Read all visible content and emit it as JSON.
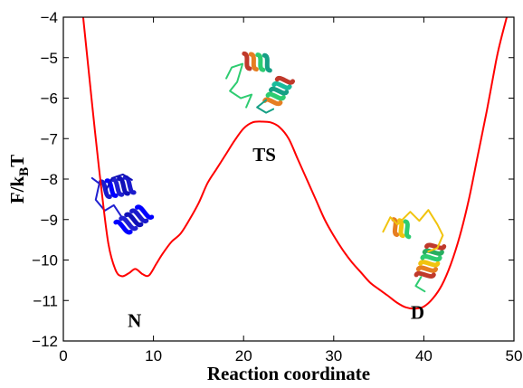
{
  "chart_data": {
    "type": "line",
    "title": "",
    "xlabel": "Reaction coordinate",
    "ylabel_main": "F/k",
    "ylabel_sub": "B",
    "ylabel_tail": "T",
    "xlim": [
      0,
      50
    ],
    "ylim": [
      -12,
      -4
    ],
    "xticks": [
      0,
      10,
      20,
      30,
      40,
      50
    ],
    "xtick_labels": [
      "0",
      "10",
      "20",
      "30",
      "40",
      "50"
    ],
    "yticks": [
      -12,
      -11,
      -10,
      -9,
      -8,
      -7,
      -6,
      -5,
      -4
    ],
    "ytick_labels": [
      "−12",
      "−11",
      "−10",
      "−9",
      "−8",
      "−7",
      "−6",
      "−5",
      "−4"
    ],
    "grid": false,
    "series": [
      {
        "color": "#ff0000",
        "x": [
          2.2,
          2.8,
          3.5,
          4.2,
          5.0,
          5.8,
          6.5,
          7.3,
          8.0,
          8.8,
          9.5,
          10.3,
          11.0,
          12.0,
          13.0,
          14.0,
          15.0,
          16.0,
          17.0,
          18.0,
          19.0,
          20.0,
          21.0,
          22.0,
          23.0,
          24.0,
          25.0,
          26.0,
          27.0,
          28.0,
          29.0,
          30.0,
          31.0,
          32.0,
          33.0,
          34.0,
          35.0,
          36.0,
          37.0,
          38.0,
          39.0,
          40.0,
          41.0,
          42.0,
          43.0,
          44.0,
          45.0,
          46.0,
          47.0,
          48.0,
          48.5,
          49.2
        ],
        "y": [
          -4.0,
          -5.3,
          -6.8,
          -8.2,
          -9.6,
          -10.25,
          -10.4,
          -10.32,
          -10.22,
          -10.35,
          -10.38,
          -10.1,
          -9.85,
          -9.55,
          -9.35,
          -9.0,
          -8.6,
          -8.1,
          -7.75,
          -7.4,
          -7.05,
          -6.75,
          -6.6,
          -6.58,
          -6.6,
          -6.72,
          -7.0,
          -7.5,
          -8.0,
          -8.5,
          -9.0,
          -9.4,
          -9.75,
          -10.05,
          -10.3,
          -10.55,
          -10.72,
          -10.88,
          -11.05,
          -11.17,
          -11.2,
          -11.15,
          -10.95,
          -10.62,
          -10.1,
          -9.4,
          -8.5,
          -7.4,
          -6.3,
          -5.1,
          -4.6,
          -4.0
        ]
      }
    ],
    "annotations": [
      {
        "text": "N",
        "x": 7.9,
        "y": -11.5
      },
      {
        "text": "TS",
        "x": 22.3,
        "y": -7.4
      },
      {
        "text": "D",
        "x": 39.3,
        "y": -11.3
      }
    ],
    "structures": [
      {
        "name": "native-protein-structure",
        "x": 6.0,
        "y": -8.2,
        "palette": [
          "#1a1acc",
          "#0000ff",
          "#2020d0",
          "#1010b8"
        ]
      },
      {
        "name": "transition-state-protein-structure",
        "x": 21.5,
        "y": -5.6,
        "palette": [
          "#c0392b",
          "#e67e22",
          "#2ecc71",
          "#16a085",
          "#1abc9c"
        ]
      },
      {
        "name": "denatured-protein-structure",
        "x": 39.5,
        "y": -9.3,
        "palette": [
          "#c0392b",
          "#e67e22",
          "#f1c40f",
          "#2ecc71",
          "#27ae60"
        ]
      }
    ]
  }
}
